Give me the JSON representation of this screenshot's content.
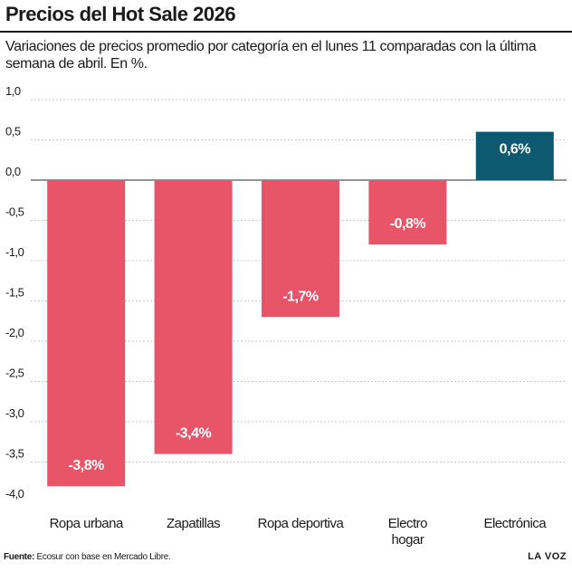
{
  "header": {
    "title": "Precios del Hot Sale 2026",
    "subtitle": "Variaciones de precios promedio por categoría en el lunes 11 comparadas con la última semana de abril. En %."
  },
  "footer": {
    "source_label": "Fuente:",
    "source_text": "Ecosur con base en Mercado Libre.",
    "brand": "LA VOZ"
  },
  "colors": {
    "negative": "#e85468",
    "positive": "#0d5a70",
    "grid": "#c8c8c8",
    "zero_line": "#555555"
  },
  "chart_data": {
    "type": "bar",
    "title": "Precios del Hot Sale 2026",
    "subtitle": "Variaciones de precios promedio por categoría en el lunes 11 comparadas con la última semana de abril. En %.",
    "categories": [
      [
        "Ropa urbana"
      ],
      [
        "Zapatillas"
      ],
      [
        "Ropa deportiva"
      ],
      [
        "Electro",
        "hogar"
      ],
      [
        "Electrónica"
      ]
    ],
    "values": [
      -3.8,
      -3.4,
      -1.7,
      -0.8,
      0.6
    ],
    "data_labels": [
      "-3,8%",
      "-3,4%",
      "-1,7%",
      "-0,8%",
      "0,6%"
    ],
    "ylim": [
      -4.0,
      1.0
    ],
    "yticks": [
      1.0,
      0.5,
      0.0,
      -0.5,
      -1.0,
      -1.5,
      -2.0,
      -2.5,
      -3.0,
      -3.5,
      -4.0
    ],
    "ytick_labels": [
      "1,0",
      "0,5",
      "0,0",
      "-0,5",
      "-1,0",
      "-1,5",
      "-2,0",
      "-2,5",
      "-3,0",
      "-3,5",
      "-4,0"
    ],
    "grid": true,
    "xlabel": "",
    "ylabel": ""
  }
}
